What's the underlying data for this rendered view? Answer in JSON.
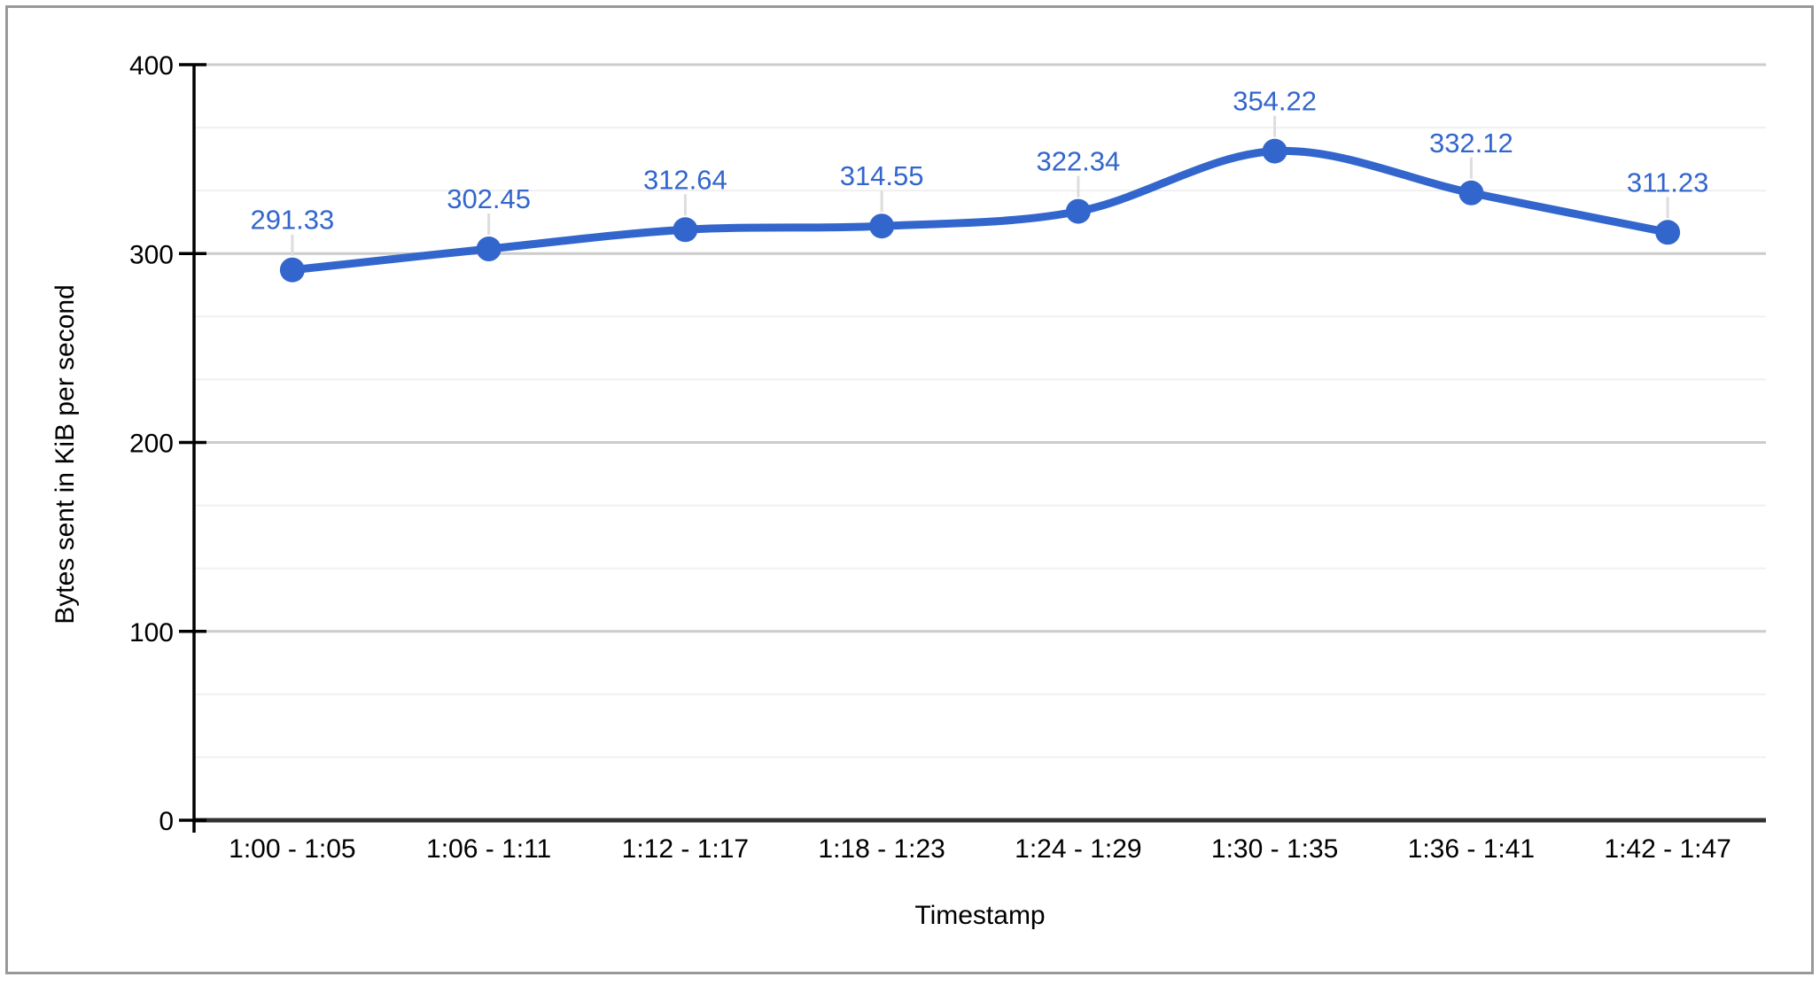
{
  "window": {
    "background": "#ffffff",
    "frame_border_color": "#999999"
  },
  "chart_data": {
    "type": "line",
    "title": "",
    "xlabel": "Timestamp",
    "ylabel": "Bytes sent in KiB per second",
    "categories": [
      "1:00 - 1:05",
      "1:06 - 1:11",
      "1:12 - 1:17",
      "1:18 - 1:23",
      "1:24 - 1:29",
      "1:30 - 1:35",
      "1:36 - 1:41",
      "1:42 - 1:47"
    ],
    "values": [
      291.33,
      302.45,
      312.64,
      314.55,
      322.34,
      354.22,
      332.12,
      311.23
    ],
    "point_labels": [
      "291.33",
      "302.45",
      "312.64",
      "314.55",
      "322.34",
      "354.22",
      "332.12",
      "311.23"
    ],
    "ylim": [
      0,
      400
    ],
    "yticks": [
      0,
      100,
      200,
      300,
      400
    ],
    "grid": true,
    "minor_gridlines_count": 2,
    "legend": "none",
    "line_smooth": true,
    "colors": {
      "series": "#3366cc",
      "annotation_text": "#3366cc",
      "annotation_stem": "#dddddd",
      "axis_text": "#000000",
      "axis_line": "#000000",
      "baseline": "#333333",
      "major_gridline": "#cccccc",
      "minor_gridline": "#f0f0f0"
    }
  }
}
